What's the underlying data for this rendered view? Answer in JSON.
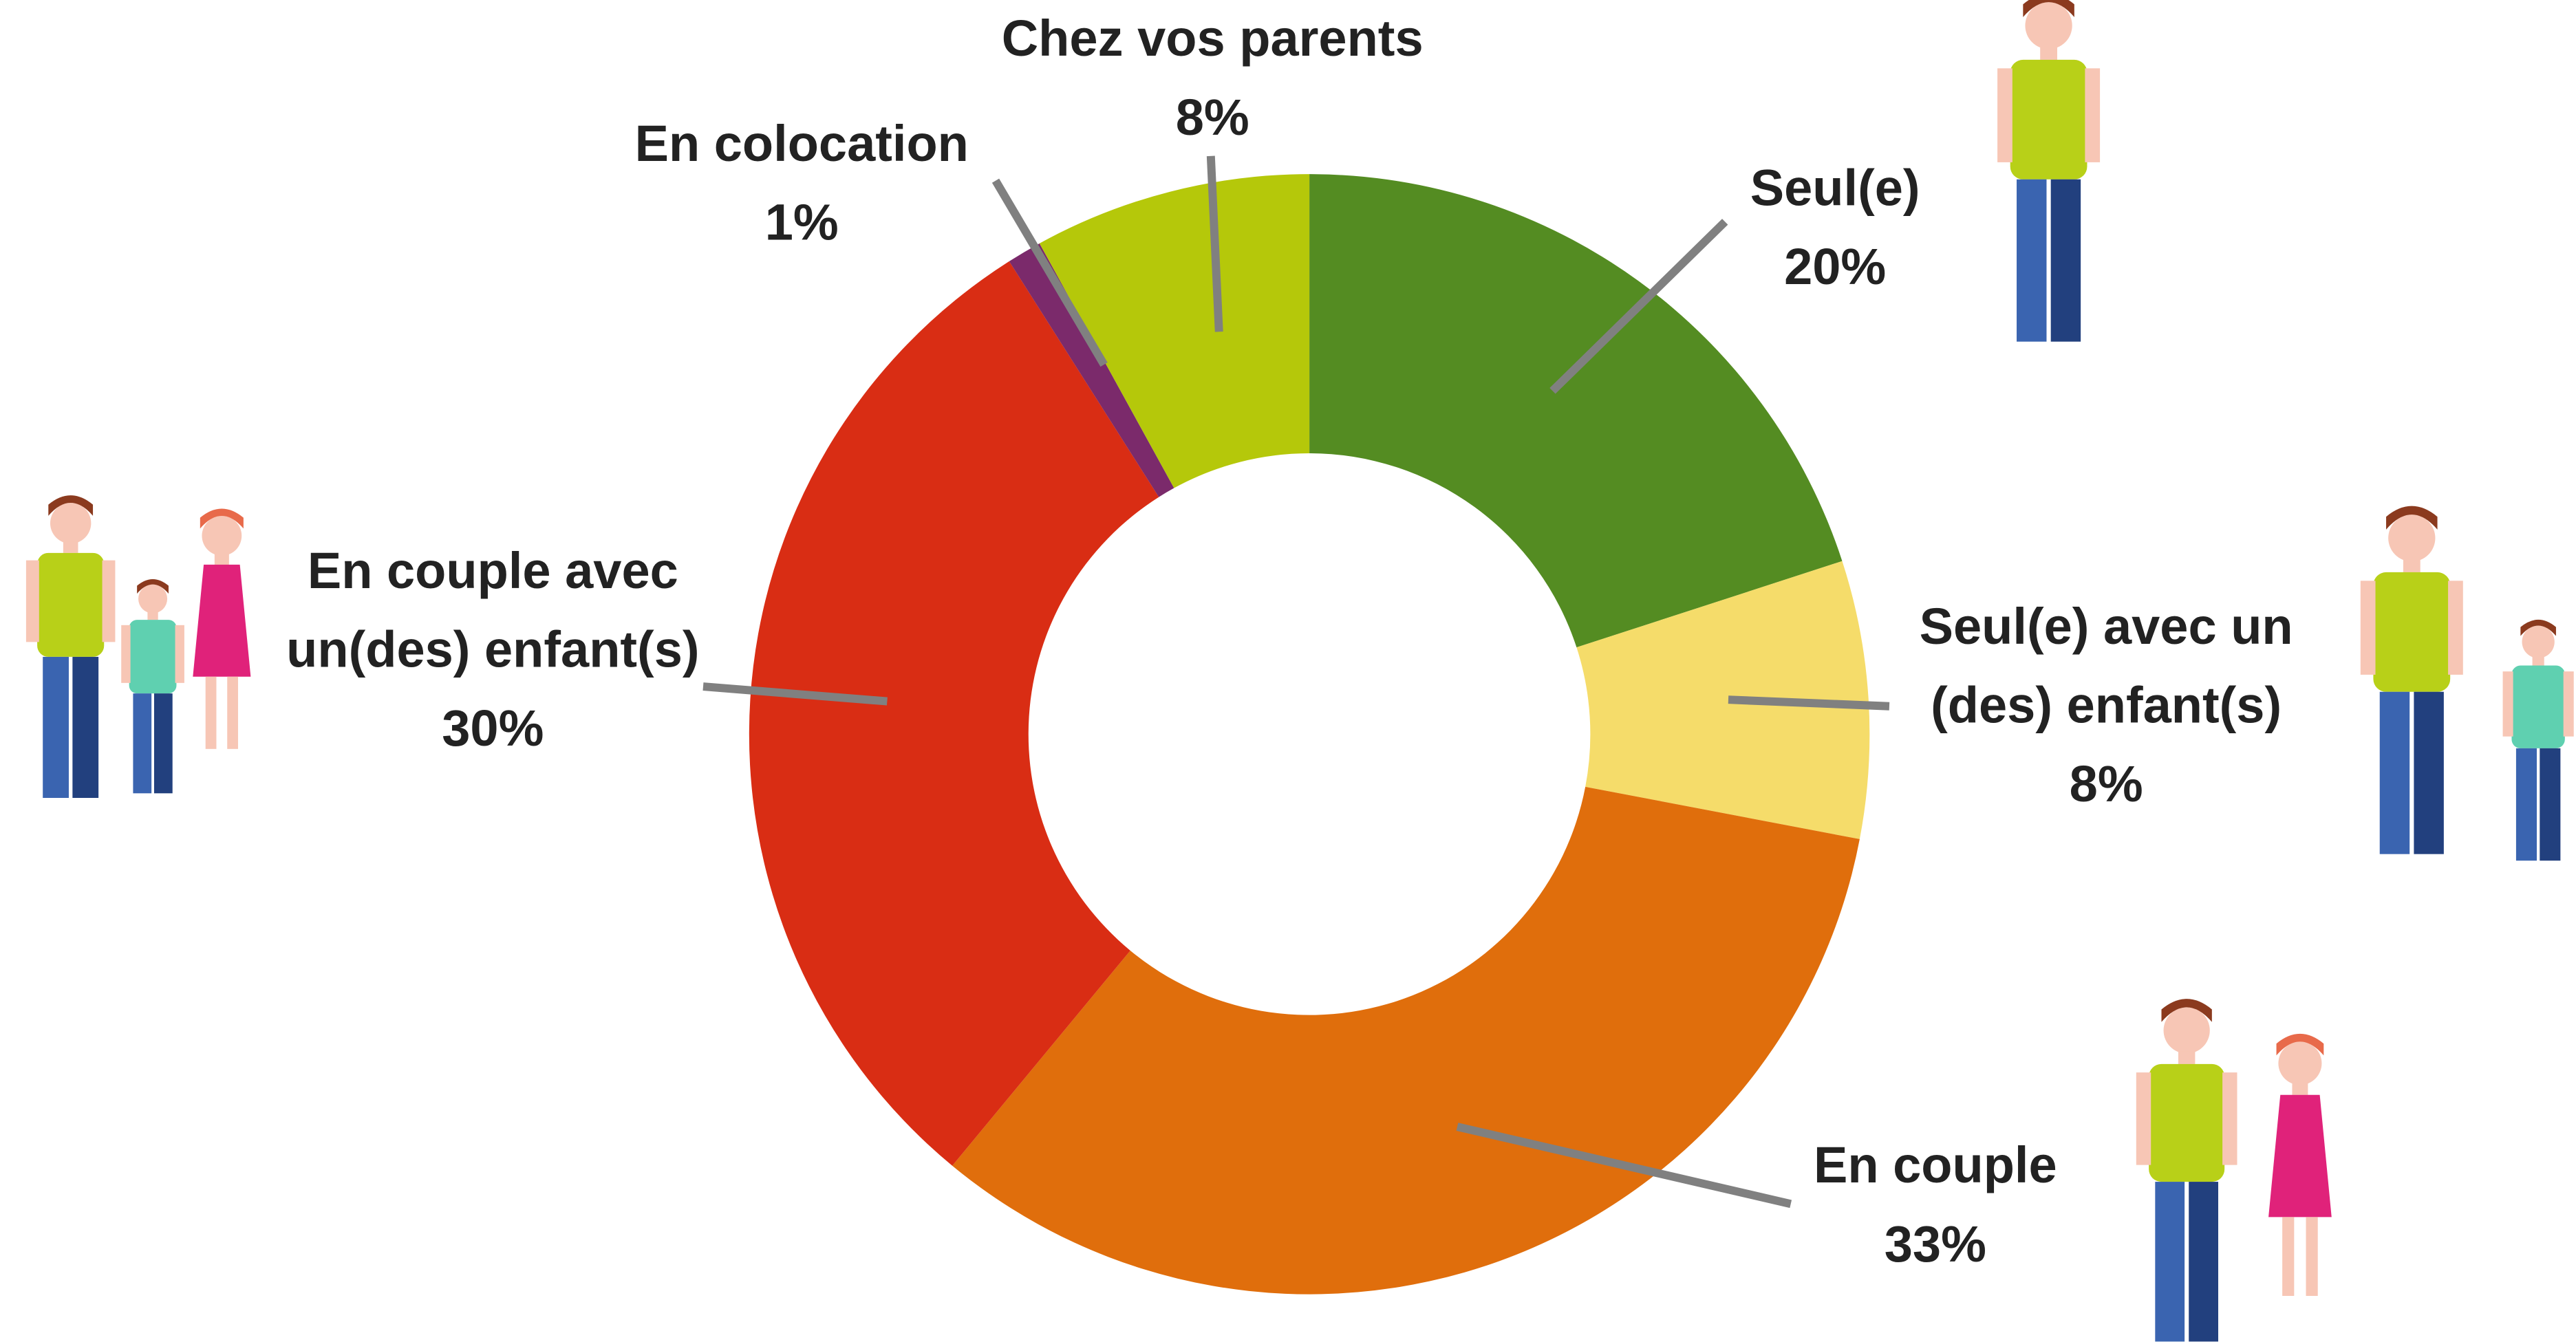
{
  "chart_data": {
    "type": "donut",
    "series": [
      {
        "name": "Seul(e)",
        "color": "#548c22",
        "values": [
          20
        ],
        "value_labels": [
          "20%"
        ]
      },
      {
        "name": "Seul(e) avec un (des) enfant(s)",
        "color": "#f5dc6a",
        "values": [
          8
        ],
        "value_labels": [
          "8%"
        ]
      },
      {
        "name": "En couple",
        "color": "#e06e0c",
        "values": [
          33
        ],
        "value_labels": [
          "33%"
        ]
      },
      {
        "name": "En couple avec un(des) enfant(s)",
        "color": "#d92d14",
        "values": [
          30
        ],
        "value_labels": [
          "30%"
        ]
      },
      {
        "name": "En colocation",
        "color": "#7b2a6b",
        "values": [
          1
        ],
        "value_labels": [
          "1%"
        ]
      },
      {
        "name": "Chez vos parents",
        "color": "#b5c80a",
        "values": [
          8
        ],
        "value_labels": [
          "8%"
        ]
      }
    ]
  }
}
